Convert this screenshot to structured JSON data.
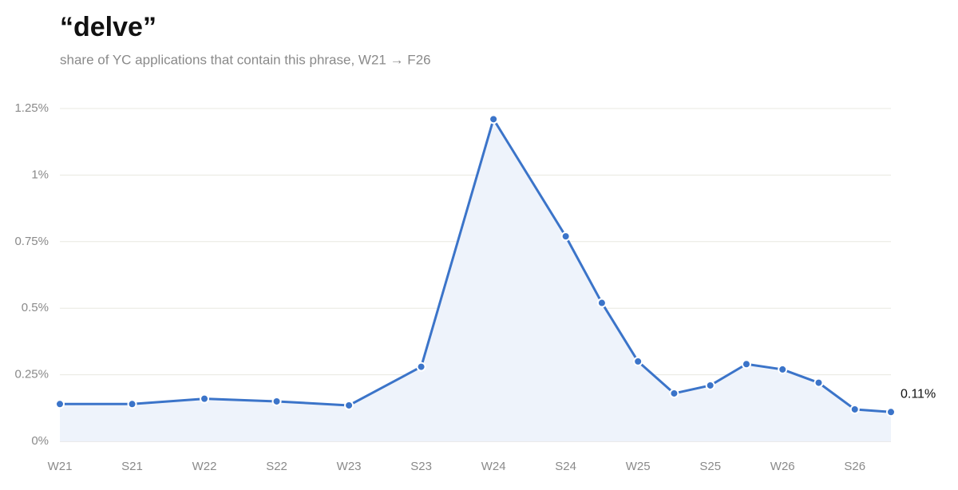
{
  "chart_data": {
    "type": "line",
    "title": "“delve”",
    "subtitle": "share of YC applications that contain this phrase, W21 → F26",
    "categories": [
      "W21",
      "S21",
      "W22",
      "S22",
      "W23",
      "S23",
      "W24",
      "S24",
      null,
      "W25",
      null,
      "S25",
      null,
      "W26",
      null,
      "S26",
      null
    ],
    "series": [
      {
        "color": "#3b74c9",
        "values": [
          0.14,
          0.14,
          0.16,
          0.15,
          0.135,
          0.28,
          1.21,
          0.77,
          0.52,
          0.3,
          0.18,
          0.21,
          0.29,
          0.27,
          0.22,
          0.12,
          0.11
        ],
        "value_labels": [
          null,
          null,
          null,
          null,
          null,
          null,
          null,
          null,
          null,
          null,
          null,
          null,
          null,
          null,
          null,
          null,
          "0.11%"
        ]
      }
    ],
    "ylim": [
      0,
      1.25
    ],
    "yticks": [
      {
        "value": 0,
        "label": "0%"
      },
      {
        "value": 0.25,
        "label": "0.25%"
      },
      {
        "value": 0.5,
        "label": "0.5%"
      },
      {
        "value": 0.75,
        "label": "0.75%"
      },
      {
        "value": 1,
        "label": "1%"
      },
      {
        "value": 1.25,
        "label": "1.25%"
      }
    ],
    "grid": true,
    "area_color": "#eef3fb"
  }
}
